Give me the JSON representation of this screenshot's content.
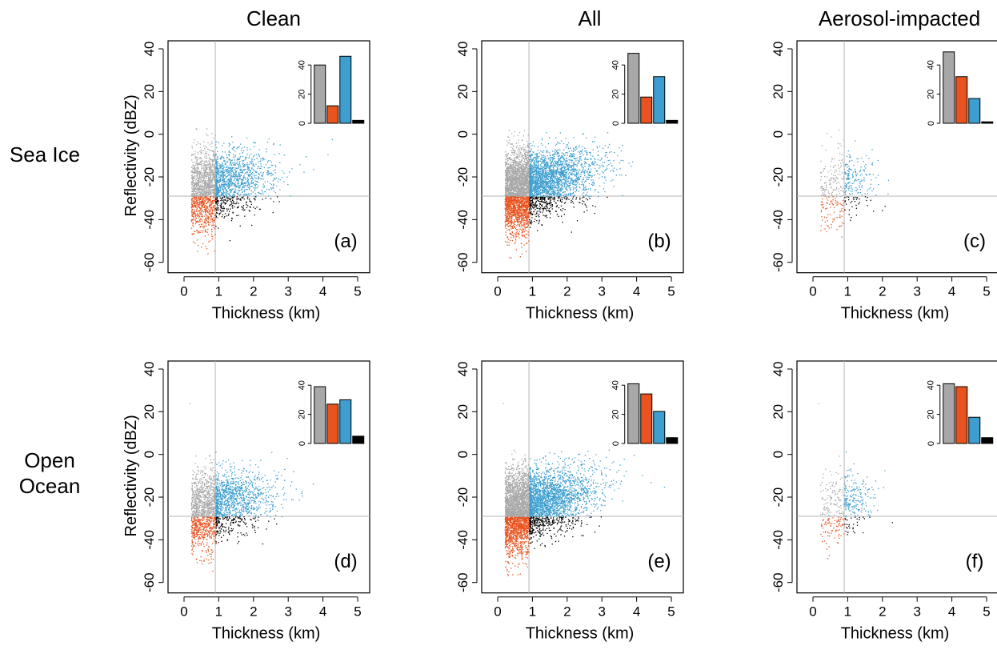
{
  "columns": [
    "Clean",
    "All",
    "Aerosol-impacted"
  ],
  "rows": [
    "Sea Ice",
    "Open\nOcean"
  ],
  "colors": {
    "gray": "#a8a8a8",
    "orange": "#e8531f",
    "blue": "#3d9ecf",
    "black": "#000000",
    "threshold_line": "#b5b5b5"
  },
  "chart_data": [
    {
      "type": "scatter",
      "panel": "(a)",
      "column": "Clean",
      "row": "Sea Ice",
      "xlabel": "Thickness (km)",
      "ylabel": "Reflectivity (dBZ)",
      "xlim": [
        0,
        5
      ],
      "ylim": [
        -60,
        40
      ],
      "xticks": [
        0,
        1,
        2,
        3,
        4,
        5
      ],
      "yticks": [
        -60,
        -40,
        -20,
        0,
        20,
        40
      ],
      "thresholds": {
        "thickness_km": 0.9,
        "reflectivity_dBZ": -29
      },
      "inset_bar": {
        "categories": [
          "gray",
          "orange",
          "blue",
          "black"
        ],
        "values": [
          40,
          12,
          46,
          2
        ],
        "yticks": [
          0,
          20,
          40
        ]
      }
    },
    {
      "type": "scatter",
      "panel": "(b)",
      "column": "All",
      "row": "Sea Ice",
      "xlabel": "Thickness (km)",
      "ylabel": "",
      "xlim": [
        0,
        5
      ],
      "ylim": [
        -60,
        40
      ],
      "xticks": [
        0,
        1,
        2,
        3,
        4,
        5
      ],
      "yticks": [
        -60,
        -40,
        -20,
        0,
        20,
        40
      ],
      "thresholds": {
        "thickness_km": 0.9,
        "reflectivity_dBZ": -29
      },
      "inset_bar": {
        "categories": [
          "gray",
          "orange",
          "blue",
          "black"
        ],
        "values": [
          48,
          18,
          32,
          2
        ],
        "yticks": [
          0,
          20,
          40
        ]
      }
    },
    {
      "type": "scatter",
      "panel": "(c)",
      "column": "Aerosol-impacted",
      "row": "Sea Ice",
      "xlabel": "Thickness (km)",
      "ylabel": "",
      "xlim": [
        0,
        5
      ],
      "ylim": [
        -60,
        40
      ],
      "xticks": [
        0,
        1,
        2,
        3,
        4,
        5
      ],
      "yticks": [
        -60,
        -40,
        -20,
        0,
        20,
        40
      ],
      "thresholds": {
        "thickness_km": 0.9,
        "reflectivity_dBZ": -29
      },
      "inset_bar": {
        "categories": [
          "gray",
          "orange",
          "blue",
          "black"
        ],
        "values": [
          49,
          32,
          17,
          1
        ],
        "yticks": [
          0,
          20,
          40
        ]
      }
    },
    {
      "type": "scatter",
      "panel": "(d)",
      "column": "Clean",
      "row": "Open Ocean",
      "xlabel": "Thickness (km)",
      "ylabel": "Reflectivity (dBZ)",
      "xlim": [
        0,
        5
      ],
      "ylim": [
        -60,
        40
      ],
      "xticks": [
        0,
        1,
        2,
        3,
        4,
        5
      ],
      "yticks": [
        -60,
        -40,
        -20,
        0,
        20,
        40
      ],
      "thresholds": {
        "thickness_km": 0.9,
        "reflectivity_dBZ": -29
      },
      "inset_bar": {
        "categories": [
          "gray",
          "orange",
          "blue",
          "black"
        ],
        "values": [
          39,
          27,
          30,
          5
        ],
        "yticks": [
          0,
          20,
          40
        ]
      }
    },
    {
      "type": "scatter",
      "panel": "(e)",
      "column": "All",
      "row": "Open Ocean",
      "xlabel": "Thickness (km)",
      "ylabel": "",
      "xlim": [
        0,
        5
      ],
      "ylim": [
        -60,
        40
      ],
      "xticks": [
        0,
        1,
        2,
        3,
        4,
        5
      ],
      "yticks": [
        -60,
        -40,
        -20,
        0,
        20,
        40
      ],
      "thresholds": {
        "thickness_km": 0.9,
        "reflectivity_dBZ": -29
      },
      "inset_bar": {
        "categories": [
          "gray",
          "orange",
          "blue",
          "black"
        ],
        "values": [
          41,
          34,
          22,
          4
        ],
        "yticks": [
          0,
          20,
          40
        ]
      }
    },
    {
      "type": "scatter",
      "panel": "(f)",
      "column": "Aerosol-impacted",
      "row": "Open Ocean",
      "xlabel": "Thickness (km)",
      "ylabel": "",
      "xlim": [
        0,
        5
      ],
      "ylim": [
        -60,
        40
      ],
      "xticks": [
        0,
        1,
        2,
        3,
        4,
        5
      ],
      "yticks": [
        -60,
        -40,
        -20,
        0,
        20,
        40
      ],
      "thresholds": {
        "thickness_km": 0.9,
        "reflectivity_dBZ": -29
      },
      "inset_bar": {
        "categories": [
          "gray",
          "orange",
          "blue",
          "black"
        ],
        "values": [
          41,
          39,
          18,
          4
        ],
        "yticks": [
          0,
          20,
          40
        ]
      }
    }
  ]
}
